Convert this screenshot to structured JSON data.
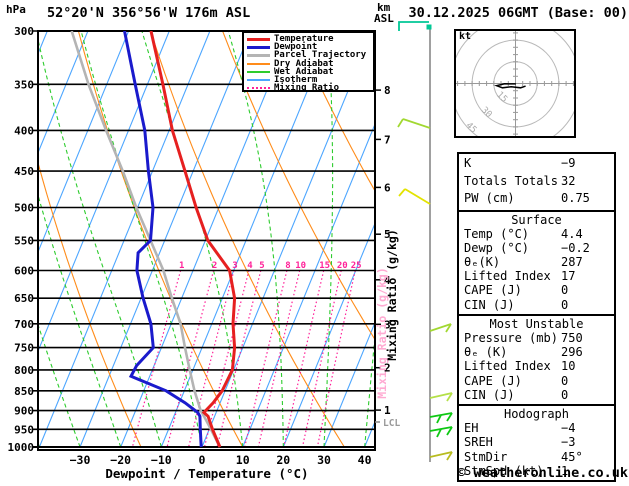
{
  "header": {
    "pressure_unit": "hPa",
    "station": "52°20'N 356°56'W 176m ASL",
    "km_unit": "km",
    "asl_unit": "ASL",
    "date": "30.12.2025 06GMT (Base: 00)"
  },
  "legend": {
    "items": [
      {
        "label": "Temperature",
        "color": "#e62020",
        "style": "solid",
        "width": 3
      },
      {
        "label": "Dewpoint",
        "color": "#1a1acc",
        "style": "solid",
        "width": 3
      },
      {
        "label": "Parcel Trajectory",
        "color": "#b4b4b4",
        "style": "solid",
        "width": 3
      },
      {
        "label": "Dry Adiabat",
        "color": "#ff8c1a",
        "style": "solid",
        "width": 2
      },
      {
        "label": "Wet Adiabat",
        "color": "#2ecc2e",
        "style": "solid",
        "width": 2
      },
      {
        "label": "Isotherm",
        "color": "#4da6ff",
        "style": "solid",
        "width": 2
      },
      {
        "label": "Mixing Ratio",
        "color": "#ff2299",
        "style": "dotted",
        "width": 2
      }
    ]
  },
  "chart_data": {
    "type": "skewt_log_p_sounding",
    "title": "52°20'N 356°56'W 176m ASL",
    "mixing_ratio_axis_label": "Mixing Ratio (g/kg)",
    "pressure_axis": {
      "unit": "hPa",
      "log": true,
      "levels": [
        300,
        350,
        400,
        450,
        500,
        550,
        600,
        650,
        700,
        750,
        800,
        850,
        900,
        950,
        1000
      ]
    },
    "temp_axis": {
      "unit": "°C",
      "label": "Dewpoint / Temperature (°C)",
      "ticks": [
        -30,
        -20,
        -10,
        0,
        10,
        20,
        30,
        40
      ]
    },
    "km_axis": {
      "unit": "km ASL",
      "ticks": [
        1,
        2,
        3,
        4,
        5,
        6,
        7,
        8
      ],
      "lcl_label": "LCL"
    },
    "series": {
      "temperature_c": [
        [
          300,
          -54.5
        ],
        [
          350,
          -46.2
        ],
        [
          400,
          -39.2
        ],
        [
          450,
          -32
        ],
        [
          500,
          -25.6
        ],
        [
          550,
          -19.4
        ],
        [
          600,
          -11
        ],
        [
          650,
          -7
        ],
        [
          700,
          -4.8
        ],
        [
          750,
          -2
        ],
        [
          800,
          -0.3
        ],
        [
          850,
          -0.7
        ],
        [
          880,
          -1.7
        ],
        [
          905,
          -3
        ],
        [
          915,
          -1.6
        ],
        [
          950,
          0.8
        ],
        [
          1000,
          4.4
        ]
      ],
      "dewpoint_c": [
        [
          300,
          -61
        ],
        [
          350,
          -53
        ],
        [
          400,
          -46
        ],
        [
          450,
          -41
        ],
        [
          500,
          -36.2
        ],
        [
          550,
          -33.5
        ],
        [
          570,
          -35.3
        ],
        [
          600,
          -33.8
        ],
        [
          650,
          -29.5
        ],
        [
          700,
          -25
        ],
        [
          750,
          -22
        ],
        [
          790,
          -24.3
        ],
        [
          815,
          -24.6
        ],
        [
          850,
          -14.5
        ],
        [
          880,
          -8.6
        ],
        [
          905,
          -4.5
        ],
        [
          915,
          -3.6
        ],
        [
          950,
          -2.2
        ],
        [
          1000,
          -0.2
        ]
      ],
      "parcel_c": [
        [
          300,
          -74
        ],
        [
          350,
          -64.5
        ],
        [
          400,
          -55.5
        ],
        [
          450,
          -47.3
        ],
        [
          500,
          -40.3
        ],
        [
          550,
          -33.5
        ],
        [
          600,
          -27.3
        ],
        [
          650,
          -22.4
        ],
        [
          700,
          -17.7
        ],
        [
          750,
          -14.2
        ],
        [
          800,
          -10.8
        ],
        [
          850,
          -7.5
        ],
        [
          900,
          -4
        ],
        [
          917,
          -2.4
        ],
        [
          950,
          0.4
        ],
        [
          1000,
          4.4
        ]
      ]
    },
    "background": {
      "isotherms": {
        "min": -90,
        "max": 40,
        "step": 10
      },
      "dry_adiabats_theta_c": [
        -65,
        -40,
        -15,
        10,
        35,
        60,
        85,
        110,
        135
      ],
      "wet_adiabats_tw_c": [
        -70,
        -60,
        -50,
        -40,
        -30,
        -20,
        -10,
        0,
        10,
        20,
        30,
        40
      ],
      "mixing_ratio_g_kg": [
        1,
        2,
        3,
        4,
        5,
        8,
        10,
        15,
        20,
        25
      ]
    },
    "colors": {
      "temperature": "#e62020",
      "dewpoint": "#1a1acc",
      "parcel": "#b4b4b4",
      "dry_adiabat": "#ff8c1a",
      "wet_adiabat": "#2ecc2e",
      "isotherm": "#4da6ff",
      "mixing_ratio": "#ff2299"
    }
  },
  "hodograph": {
    "unit": "kt",
    "rings": [
      15,
      30,
      45
    ],
    "trace_kt": [
      [
        0.3,
        0.3
      ],
      [
        -7.5,
        0.2
      ],
      [
        -13,
        1.5
      ],
      [
        -9,
        3
      ],
      [
        -3,
        2.2
      ],
      [
        3.5,
        3
      ],
      [
        7,
        1.8
      ]
    ]
  },
  "wind_barbs": [
    {
      "color": "#00c896",
      "paths": [
        [
          [
            399,
            31
          ],
          [
            399,
            22
          ],
          [
            429,
            22
          ]
        ]
      ],
      "dot": [
        429,
        27
      ]
    },
    {
      "color": "#a2d832",
      "paths": [
        [
          [
            430,
            128
          ],
          [
            403,
            119
          ]
        ],
        [
          [
            403,
            119
          ],
          [
            398,
            127
          ]
        ]
      ]
    },
    {
      "color": "#e3e300",
      "paths": [
        [
          [
            430,
            204
          ],
          [
            405,
            189
          ]
        ],
        [
          [
            405,
            189
          ],
          [
            399,
            196
          ]
        ]
      ]
    },
    {
      "color": "#a2d832",
      "paths": [
        [
          [
            430,
            331
          ],
          [
            451,
            324
          ]
        ],
        [
          [
            451,
            324
          ],
          [
            446,
            332
          ]
        ]
      ]
    },
    {
      "color": "#b4e048",
      "paths": [
        [
          [
            430,
            398
          ],
          [
            452,
            393
          ]
        ],
        [
          [
            452,
            393
          ],
          [
            447,
            401
          ]
        ]
      ]
    },
    {
      "color": "#0ec814",
      "paths": [
        [
          [
            430,
            417
          ],
          [
            452,
            413
          ]
        ],
        [
          [
            452,
            413
          ],
          [
            447,
            421
          ]
        ],
        [
          [
            441,
            415
          ],
          [
            437,
            423
          ]
        ]
      ]
    },
    {
      "color": "#0ec814",
      "paths": [
        [
          [
            430,
            431
          ],
          [
            452,
            427
          ]
        ],
        [
          [
            452,
            427
          ],
          [
            447,
            435
          ]
        ],
        [
          [
            441,
            429
          ],
          [
            437,
            437
          ]
        ]
      ]
    },
    {
      "color": "#b8bc20",
      "paths": [
        [
          [
            430,
            457
          ],
          [
            452,
            452
          ]
        ],
        [
          [
            452,
            452
          ],
          [
            447,
            460
          ]
        ]
      ]
    }
  ],
  "table": {
    "sections": [
      {
        "header": null,
        "rows": [
          [
            "K",
            "−9"
          ],
          [
            "Totals Totals",
            "32"
          ],
          [
            "PW (cm)",
            "0.75"
          ]
        ]
      },
      {
        "header": "Surface",
        "rows": [
          [
            "Temp (°C)",
            "4.4"
          ],
          [
            "Dewp (°C)",
            "−0.2"
          ],
          [
            "θₑ(K)",
            "287"
          ],
          [
            "Lifted Index",
            "17"
          ],
          [
            "CAPE (J)",
            "0"
          ],
          [
            "CIN (J)",
            "0"
          ]
        ]
      },
      {
        "header": "Most Unstable",
        "rows": [
          [
            "Pressure (mb)",
            "750"
          ],
          [
            "θₑ (K)",
            "296"
          ],
          [
            "Lifted Index",
            "10"
          ],
          [
            "CAPE (J)",
            "0"
          ],
          [
            "CIN (J)",
            "0"
          ]
        ]
      },
      {
        "header": "Hodograph",
        "rows": [
          [
            "EH",
            "−4"
          ],
          [
            "SREH",
            "−3"
          ],
          [
            "StmDir",
            "45°"
          ],
          [
            "StmSpd (kt)",
            "1"
          ]
        ]
      }
    ]
  },
  "footer": {
    "credit": "© weatheronline.co.uk"
  }
}
